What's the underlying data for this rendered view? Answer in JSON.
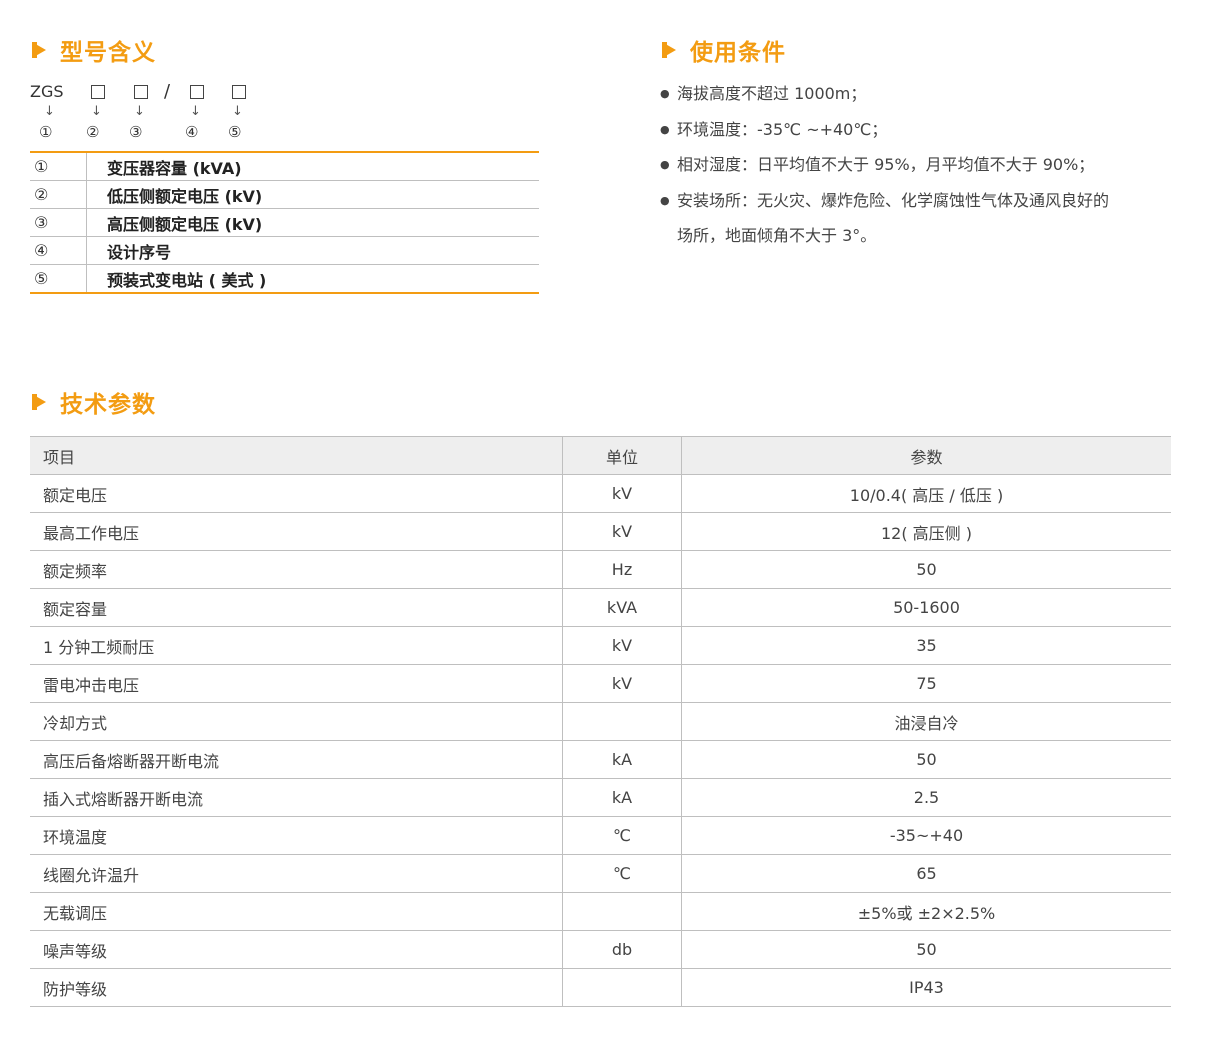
{
  "sections": {
    "model_meaning": "型号含义",
    "usage_conditions": "使用条件",
    "tech_params": "技术参数"
  },
  "model_code": {
    "prefix": "ZGS",
    "slash": "/",
    "arrow": "↓",
    "numbers": [
      "①",
      "②",
      "③",
      "④",
      "⑤"
    ]
  },
  "model_table": [
    {
      "num": "①",
      "text": "变压器容量 (kVA)"
    },
    {
      "num": "②",
      "text": "低压侧额定电压 (kV)"
    },
    {
      "num": "③",
      "text": "高压侧额定电压 (kV)"
    },
    {
      "num": "④",
      "text": "设计序号"
    },
    {
      "num": "⑤",
      "text": "预装式变电站 ( 美式 )"
    }
  ],
  "conditions": [
    {
      "line1": "海拔高度不超过 1000m；",
      "line2": ""
    },
    {
      "line1": "环境温度：-35℃ ~+40℃；",
      "line2": ""
    },
    {
      "line1": "相对湿度：日平均值不大于 95%，月平均值不大于 90%；",
      "line2": ""
    },
    {
      "line1": "安装场所：无火灾、爆炸危险、化学腐蚀性气体及通风良好的",
      "line2": "场所，地面倾角不大于 3°。"
    }
  ],
  "param_table": {
    "headers": [
      "项目",
      "单位",
      "参数"
    ],
    "rows": [
      [
        "额定电压",
        "kV",
        "10/0.4( 高压 / 低压 )"
      ],
      [
        "最高工作电压",
        "kV",
        "12( 高压侧 )"
      ],
      [
        "额定频率",
        "Hz",
        "50"
      ],
      [
        "额定容量",
        "kVA",
        "50-1600"
      ],
      [
        "1 分钟工频耐压",
        "kV",
        "35"
      ],
      [
        "雷电冲击电压",
        "kV",
        "75"
      ],
      [
        "冷却方式",
        "",
        "油浸自冷"
      ],
      [
        "高压后备熔断器开断电流",
        "kA",
        "50"
      ],
      [
        "插入式熔断器开断电流",
        "kA",
        "2.5"
      ],
      [
        "环境温度",
        "℃",
        "-35~+40"
      ],
      [
        "线圈允许温升",
        "℃",
        "65"
      ],
      [
        "无载调压",
        "",
        "±5%或 ±2×2.5%"
      ],
      [
        "噪声等级",
        "db",
        "50"
      ],
      [
        "防护等级",
        "",
        "IP43"
      ]
    ]
  },
  "colors": {
    "accent": "#f39c12",
    "header_bg": "#eeeeee",
    "rule": "#bfbfbf"
  }
}
